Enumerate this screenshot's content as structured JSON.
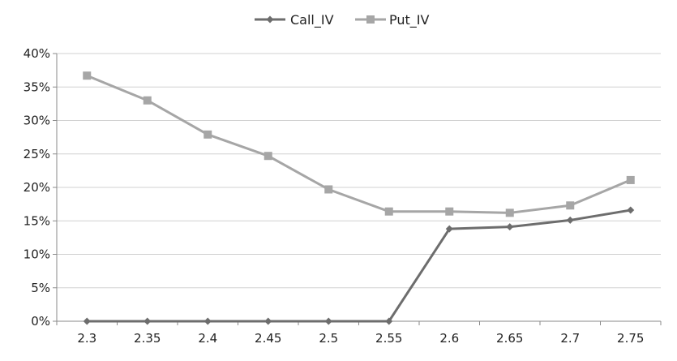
{
  "chart_data": {
    "type": "line",
    "title": "",
    "xlabel": "",
    "ylabel": "",
    "categories": [
      "2.3",
      "2.35",
      "2.4",
      "2.45",
      "2.5",
      "2.55",
      "2.6",
      "2.65",
      "2.7",
      "2.75"
    ],
    "ylim": [
      0,
      0.4
    ],
    "yticks": [
      0,
      0.05,
      0.1,
      0.15,
      0.2,
      0.25,
      0.3,
      0.35,
      0.4
    ],
    "ytick_labels": [
      "0%",
      "5%",
      "10%",
      "15%",
      "20%",
      "25%",
      "30%",
      "35%",
      "40%"
    ],
    "grid": true,
    "legend_position": "top",
    "series": [
      {
        "name": "Call_IV",
        "marker": "diamond",
        "color": "#6d6d6d",
        "values": [
          0,
          0,
          0,
          0,
          0,
          0,
          0.138,
          0.141,
          0.151,
          0.166
        ]
      },
      {
        "name": "Put_IV",
        "marker": "square",
        "color": "#a6a6a6",
        "values": [
          0.367,
          0.33,
          0.279,
          0.247,
          0.197,
          0.164,
          0.164,
          0.162,
          0.173,
          0.211
        ]
      }
    ]
  }
}
